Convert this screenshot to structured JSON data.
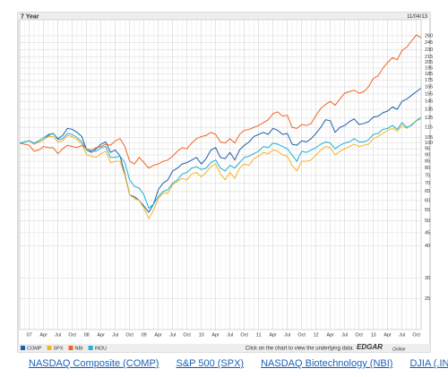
{
  "chart_data": {
    "type": "line",
    "title": "7 Year",
    "subtitle": "11/04/13",
    "log_scale": true,
    "grid": true,
    "categories": [
      null,
      null,
      "07",
      null,
      null,
      "Apr",
      null,
      null,
      "Jul",
      null,
      null,
      "Oct",
      null,
      null,
      "08",
      null,
      null,
      "Apr",
      null,
      null,
      "Jul",
      null,
      null,
      "Oct",
      null,
      null,
      "09",
      null,
      null,
      "Apr",
      null,
      null,
      "Jul",
      null,
      null,
      "Oct",
      null,
      null,
      "10",
      null,
      null,
      "Apr",
      null,
      null,
      "Jul",
      null,
      null,
      "Oct",
      null,
      null,
      "11",
      null,
      null,
      "Apr",
      null,
      null,
      "Jul",
      null,
      null,
      "Oct",
      null,
      null,
      "12",
      null,
      null,
      "Apr",
      null,
      null,
      "Jul",
      null,
      null,
      "Oct",
      null,
      null,
      "13",
      null,
      null,
      "Apr",
      null,
      null,
      "Jul",
      null,
      null,
      "Oct",
      null
    ],
    "series": [
      {
        "name": "COMP",
        "color": "#1f5fa6",
        "values": [
          100,
          101,
          102,
          99,
          101,
          103,
          107,
          109,
          104,
          107,
          114,
          113,
          110,
          106,
          94,
          92,
          95,
          99,
          101,
          92,
          94,
          89,
          76,
          63,
          62,
          60,
          57,
          54,
          58,
          66,
          70,
          72,
          78,
          80,
          83,
          84,
          86,
          88,
          83,
          87,
          94,
          96,
          88,
          87,
          92,
          86,
          94,
          98,
          101,
          106,
          108,
          110,
          108,
          114,
          112,
          108,
          109,
          99,
          98,
          102,
          101,
          104,
          109,
          115,
          123,
          122,
          110,
          115,
          117,
          121,
          124,
          118,
          119,
          121,
          126,
          127,
          131,
          133,
          138,
          135,
          145,
          148,
          153,
          158,
          163
        ]
      },
      {
        "name": "SPX",
        "color": "#f5b324",
        "values": [
          100,
          101,
          102,
          99,
          101,
          103,
          106,
          106,
          101,
          102,
          107,
          106,
          103,
          99,
          90,
          89,
          88,
          91,
          93,
          84,
          85,
          85,
          75,
          63,
          61,
          60,
          56,
          51,
          55,
          61,
          64,
          64,
          69,
          71,
          73,
          72,
          76,
          77,
          74,
          77,
          81,
          83,
          76,
          72,
          77,
          73,
          80,
          83,
          82,
          87,
          89,
          92,
          91,
          94,
          93,
          90,
          89,
          82,
          78,
          85,
          85,
          86,
          90,
          94,
          97,
          96,
          90,
          93,
          95,
          97,
          99,
          97,
          98,
          99,
          104,
          106,
          109,
          112,
          114,
          111,
          117,
          114,
          118,
          122,
          124
        ]
      },
      {
        "name": "NBI",
        "color": "#f26522",
        "values": [
          100,
          99,
          98,
          93,
          94,
          97,
          96,
          96,
          91,
          95,
          98,
          97,
          96,
          98,
          95,
          94,
          96,
          97,
          99,
          98,
          102,
          104,
          97,
          85,
          83,
          88,
          84,
          80,
          82,
          83,
          85,
          86,
          89,
          93,
          96,
          95,
          100,
          104,
          106,
          107,
          110,
          108,
          101,
          100,
          104,
          100,
          108,
          112,
          113,
          115,
          117,
          120,
          123,
          130,
          132,
          127,
          128,
          115,
          114,
          118,
          117,
          119,
          128,
          136,
          141,
          145,
          140,
          148,
          156,
          158,
          160,
          156,
          158,
          165,
          178,
          182,
          195,
          205,
          214,
          210,
          228,
          235,
          248,
          262,
          255
        ]
      },
      {
        "name": "INDU",
        "color": "#1fb0d8",
        "values": [
          100,
          101,
          102,
          100,
          102,
          105,
          108,
          109,
          103,
          104,
          109,
          108,
          105,
          101,
          94,
          93,
          93,
          96,
          97,
          88,
          88,
          89,
          84,
          72,
          68,
          67,
          63,
          56,
          58,
          62,
          65,
          66,
          70,
          72,
          76,
          77,
          80,
          81,
          79,
          80,
          84,
          86,
          80,
          78,
          82,
          80,
          84,
          88,
          89,
          91,
          93,
          97,
          96,
          100,
          99,
          97,
          95,
          90,
          85,
          93,
          92,
          94,
          96,
          99,
          101,
          100,
          95,
          98,
          100,
          101,
          104,
          101,
          101,
          103,
          108,
          109,
          113,
          114,
          117,
          113,
          120,
          115,
          117,
          122,
          126
        ]
      }
    ],
    "ylim": [
      19,
      300
    ],
    "yticks": [
      25,
      30,
      40,
      45,
      50,
      55,
      60,
      65,
      70,
      75,
      80,
      85,
      90,
      95,
      100,
      105,
      115,
      125,
      135,
      145,
      155,
      165,
      175,
      185,
      195,
      205,
      215,
      230,
      245,
      260
    ]
  },
  "footer": {
    "note": "Click on the chart to view the underlying data.",
    "logo": "EDGAR",
    "logo_sub": "Online"
  },
  "links": [
    "NASDAQ Composite (COMP)",
    "S&P 500 (SPX)",
    "NASDAQ Biotechnology (NBI)",
    "DJIA (.INDU)"
  ]
}
